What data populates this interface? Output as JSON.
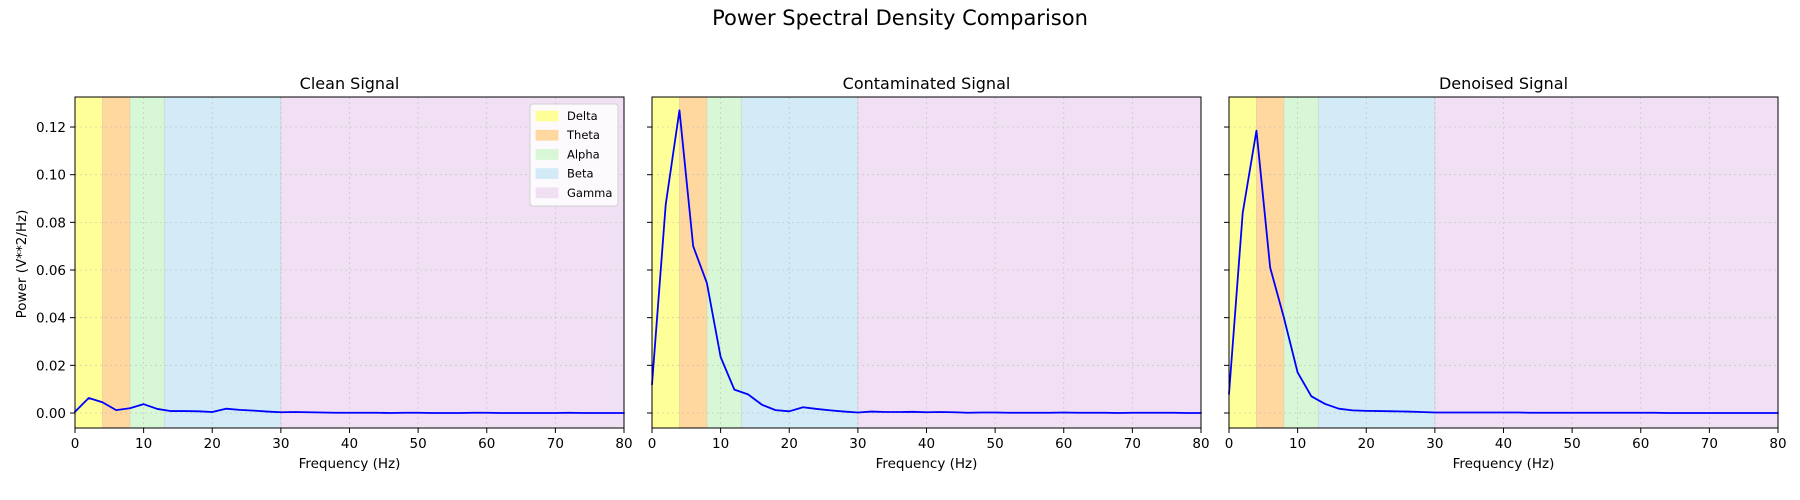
{
  "figure": {
    "suptitle": "Power Spectral Density Comparison",
    "ylabel": "Power (V**2/Hz)"
  },
  "chart_data": [
    {
      "type": "line",
      "title": "Clean Signal",
      "xlabel": "Frequency (Hz)",
      "ylabel": "Power (V**2/Hz)",
      "xlim": [
        0,
        80
      ],
      "ylim": [
        -0.0063,
        0.1326
      ],
      "xticks": [
        0,
        10,
        20,
        30,
        40,
        50,
        60,
        70,
        80
      ],
      "yticks": [
        0.0,
        0.02,
        0.04,
        0.06,
        0.08,
        0.1,
        0.12
      ],
      "ytick_labels": [
        "0.00",
        "0.02",
        "0.04",
        "0.06",
        "0.08",
        "0.10",
        "0.12"
      ],
      "grid": true,
      "legend_placement": "upper-right",
      "series": [
        {
          "color": "#0000ff",
          "x": [
            0,
            2,
            4,
            6,
            8,
            10,
            12,
            14,
            16,
            18,
            20,
            22,
            24,
            26,
            28,
            30,
            32,
            34,
            36,
            38,
            40,
            42,
            44,
            46,
            48,
            50,
            52,
            54,
            56,
            58,
            60,
            62,
            64,
            66,
            68,
            70,
            72,
            74,
            76,
            78,
            80
          ],
          "y": [
            0.0005,
            0.0063,
            0.0045,
            0.0012,
            0.002,
            0.0037,
            0.0017,
            0.0008,
            0.0008,
            0.0007,
            0.0004,
            0.0018,
            0.0013,
            0.001,
            0.0006,
            0.0003,
            0.0004,
            0.0003,
            0.0002,
            0.0001,
            0.0001,
            0.0001,
            0.0001,
            0.0,
            0.0001,
            0.0001,
            0.0,
            0.0,
            0.0,
            0.0001,
            0.0001,
            0.0,
            0.0,
            0.0,
            0.0,
            0.0,
            0.0001,
            0.0,
            0.0,
            0.0,
            0.0
          ]
        }
      ]
    },
    {
      "type": "line",
      "title": "Contaminated Signal",
      "xlabel": "Frequency (Hz)",
      "xlim": [
        0,
        80
      ],
      "ylim": [
        -0.0063,
        0.1326
      ],
      "xticks": [
        0,
        10,
        20,
        30,
        40,
        50,
        60,
        70,
        80
      ],
      "yticks": [
        0.0,
        0.02,
        0.04,
        0.06,
        0.08,
        0.1,
        0.12
      ],
      "grid": true,
      "series": [
        {
          "color": "#0000ff",
          "x": [
            0,
            2,
            4,
            6,
            8,
            10,
            12,
            14,
            16,
            18,
            20,
            22,
            24,
            26,
            28,
            30,
            32,
            34,
            36,
            38,
            40,
            42,
            44,
            46,
            48,
            50,
            52,
            54,
            56,
            58,
            60,
            62,
            64,
            66,
            68,
            70,
            72,
            74,
            76,
            78,
            80
          ],
          "y": [
            0.012,
            0.0875,
            0.127,
            0.07,
            0.0545,
            0.0235,
            0.0098,
            0.0078,
            0.0035,
            0.0012,
            0.0007,
            0.0024,
            0.0017,
            0.0011,
            0.0006,
            0.0002,
            0.0006,
            0.0004,
            0.0004,
            0.0005,
            0.0003,
            0.0004,
            0.0003,
            0.0001,
            0.0002,
            0.0002,
            0.0001,
            0.0001,
            0.0001,
            0.0001,
            0.0002,
            0.0001,
            0.0001,
            0.0001,
            0.0,
            0.0001,
            0.0001,
            0.0001,
            0.0001,
            0.0,
            0.0
          ]
        }
      ]
    },
    {
      "type": "line",
      "title": "Denoised Signal",
      "xlabel": "Frequency (Hz)",
      "xlim": [
        0,
        80
      ],
      "ylim": [
        -0.0063,
        0.1326
      ],
      "xticks": [
        0,
        10,
        20,
        30,
        40,
        50,
        60,
        70,
        80
      ],
      "yticks": [
        0.0,
        0.02,
        0.04,
        0.06,
        0.08,
        0.1,
        0.12
      ],
      "grid": true,
      "series": [
        {
          "color": "#0000ff",
          "x": [
            0,
            2,
            4,
            6,
            8,
            10,
            12,
            14,
            16,
            18,
            20,
            22,
            24,
            26,
            28,
            30,
            32,
            34,
            36,
            38,
            40,
            42,
            44,
            46,
            48,
            50,
            52,
            54,
            56,
            58,
            60,
            62,
            64,
            66,
            68,
            70,
            72,
            74,
            76,
            78,
            80
          ],
          "y": [
            0.008,
            0.084,
            0.1185,
            0.061,
            0.04,
            0.017,
            0.007,
            0.0038,
            0.0018,
            0.0011,
            0.0009,
            0.0008,
            0.0007,
            0.0006,
            0.0004,
            0.0002,
            0.0002,
            0.0002,
            0.0002,
            0.0002,
            0.0002,
            0.0002,
            0.0001,
            0.0001,
            0.0001,
            0.0001,
            0.0001,
            0.0001,
            0.0001,
            0.0001,
            0.0001,
            0.0001,
            0.0,
            0.0,
            0.0,
            0.0,
            0.0,
            0.0,
            0.0,
            0.0,
            0.0
          ]
        }
      ]
    }
  ],
  "bands": [
    {
      "name": "Delta",
      "range": [
        0,
        4
      ],
      "color": "#ffff99"
    },
    {
      "name": "Theta",
      "range": [
        4,
        8
      ],
      "color": "#ffd8a0"
    },
    {
      "name": "Alpha",
      "range": [
        8,
        13
      ],
      "color": "#d7f7d7"
    },
    {
      "name": "Beta",
      "range": [
        13,
        30
      ],
      "color": "#d2ebf6"
    },
    {
      "name": "Gamma",
      "range": [
        30,
        80
      ],
      "color": "#f1dff3"
    }
  ],
  "colors": {
    "line": "#0000ff",
    "grid": "#b0b0b0",
    "axes": "#000000",
    "background": "#ffffff"
  }
}
